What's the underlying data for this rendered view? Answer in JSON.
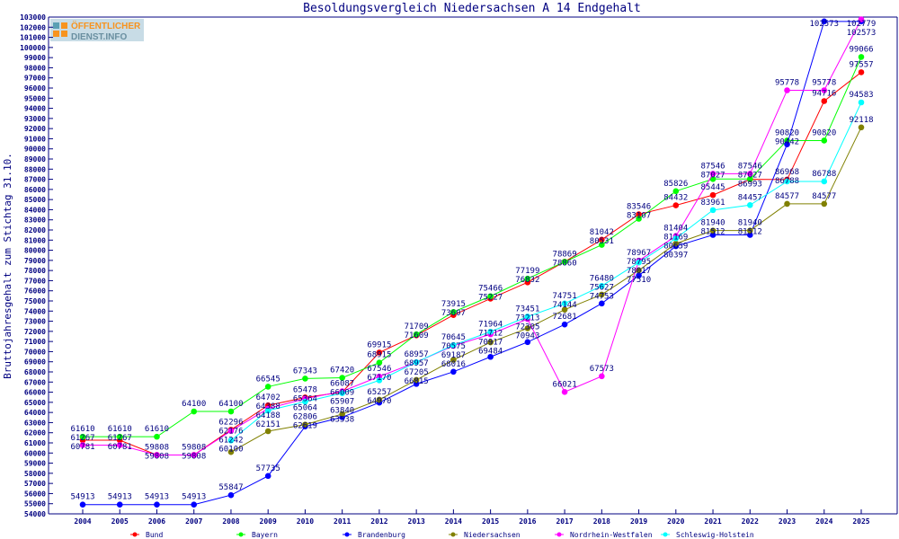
{
  "chart_data": {
    "type": "line",
    "title": "Besoldungsvergleich Niedersachsen A 14 Endgehalt",
    "ylabel": "Bruttojahresgehalt zum Stichtag 31.10.",
    "xlabel": "",
    "ylim": [
      54000,
      103000
    ],
    "ytick_step": 1000,
    "grid": false,
    "legend_placement": "bottom",
    "logo_text": "ÖFFENTLICHER DIENST.INFO",
    "x": [
      2004,
      2005,
      2006,
      2007,
      2008,
      2009,
      2010,
      2011,
      2012,
      2013,
      2014,
      2015,
      2016,
      2017,
      2018,
      2019,
      2020,
      2021,
      2022,
      2023,
      2024,
      2025
    ],
    "series": [
      {
        "name": "Bund",
        "color": "#ff0000",
        "values": [
          61267,
          61267,
          59808,
          59808,
          62296,
          64702,
          65478,
          66009,
          69915,
          71609,
          73607,
          75227,
          76832,
          78869,
          81042,
          83546,
          84432,
          85445,
          86993,
          86968,
          94716,
          97557
        ]
      },
      {
        "name": "Bayern",
        "color": "#00ff00",
        "values": [
          61610,
          61610,
          61610,
          64100,
          64100,
          66545,
          67343,
          67420,
          68915,
          71709,
          73915,
          75466,
          77199,
          78860,
          80531,
          83107,
          85826,
          87027,
          87027,
          90820,
          90820,
          99066
        ]
      },
      {
        "name": "Brandenburg",
        "color": "#0000ff",
        "values": [
          54913,
          54913,
          54913,
          54913,
          55847,
          57735,
          62619,
          63538,
          64970,
          66815,
          68016,
          69484,
          70943,
          72681,
          74753,
          77510,
          80397,
          81512,
          81512,
          90442,
          102573,
          102573
        ]
      },
      {
        "name": "Niedersachsen",
        "color": "#808000",
        "values": [
          null,
          null,
          null,
          null,
          60100,
          62151,
          62806,
          63840,
          65257,
          67205,
          69187,
          70917,
          72305,
          74144,
          75627,
          78017,
          80659,
          81940,
          81940,
          84577,
          84577,
          92118
        ]
      },
      {
        "name": "Nordrhein-Westfalen",
        "color": "#ff00ff",
        "values": [
          60781,
          60781,
          59808,
          59808,
          62176,
          64388,
          65364,
          66087,
          67546,
          68957,
          70575,
          71712,
          73213,
          66021,
          67573,
          78967,
          81404,
          87546,
          87546,
          95778,
          95778,
          102779
        ]
      },
      {
        "name": "Schleswig-Holstein",
        "color": "#00ffff",
        "values": [
          null,
          null,
          null,
          null,
          61242,
          64188,
          65064,
          65907,
          67170,
          68957,
          70645,
          71964,
          73451,
          74751,
          76480,
          78795,
          81169,
          83961,
          84457,
          86788,
          86788,
          94583
        ]
      }
    ]
  }
}
